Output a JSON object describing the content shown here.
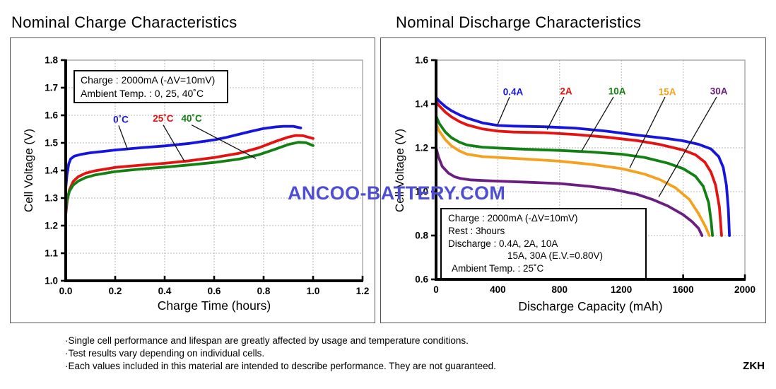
{
  "watermark": {
    "text": "ANCOO-BATTERY.COM",
    "color": "#4e4ed2"
  },
  "footer": {
    "notes": [
      "·Single cell performance and lifespan are greatly affected by usage and temperature conditions.",
      "·Test results vary depending on individual cells.",
      "·Each values included in this material are intended to describe performance. They are not guaranteed."
    ],
    "code": "ZKH"
  },
  "chart_data": [
    {
      "type": "line",
      "title": "Nominal Charge Characteristics",
      "xlabel": "Charge Time (hours)",
      "ylabel": "Cell Voltage (V)",
      "xlim": [
        0.0,
        1.2
      ],
      "ylim": [
        1.0,
        1.8
      ],
      "grid": true,
      "xticks": [
        0.0,
        0.2,
        0.4,
        0.6,
        0.8,
        1.0,
        1.2
      ],
      "xtick_labels": [
        "0.0",
        "0.2",
        "0.4",
        "0.6",
        "0.8",
        "1.0",
        "1.2"
      ],
      "yticks": [
        1.0,
        1.1,
        1.2,
        1.3,
        1.4,
        1.5,
        1.6,
        1.7,
        1.8
      ],
      "ytick_labels": [
        "1.0",
        "1.1",
        "1.2",
        "1.3",
        "1.4",
        "1.5",
        "1.6",
        "1.7",
        "1.8"
      ],
      "annotation_lines": [
        "Charge : 2000mA (-ΔV=10mV)",
        "Ambient Temp. : 0, 25, 40˚C"
      ],
      "series": [
        {
          "name": "0˚C",
          "color": "#1515dd",
          "label_xy": [
            0.223,
            1.585
          ],
          "leader": [
            [
              0.214,
              1.563
            ],
            [
              0.251,
              1.474
            ]
          ],
          "points": [
            [
              0,
              1.335
            ],
            [
              0.005,
              1.385
            ],
            [
              0.012,
              1.423
            ],
            [
              0.02,
              1.442
            ],
            [
              0.035,
              1.452
            ],
            [
              0.06,
              1.458
            ],
            [
              0.1,
              1.464
            ],
            [
              0.15,
              1.469
            ],
            [
              0.2,
              1.474
            ],
            [
              0.3,
              1.482
            ],
            [
              0.4,
              1.489
            ],
            [
              0.5,
              1.498
            ],
            [
              0.6,
              1.511
            ],
            [
              0.65,
              1.52
            ],
            [
              0.7,
              1.531
            ],
            [
              0.75,
              1.542
            ],
            [
              0.8,
              1.552
            ],
            [
              0.85,
              1.558
            ],
            [
              0.88,
              1.56
            ],
            [
              0.92,
              1.56
            ],
            [
              0.95,
              1.554
            ]
          ]
        },
        {
          "name": "25˚C",
          "color": "#e51212",
          "label_xy": [
            0.394,
            1.589
          ],
          "leader": [
            [
              0.394,
              1.565
            ],
            [
              0.48,
              1.433
            ]
          ],
          "points": [
            [
              0,
              1.238
            ],
            [
              0.006,
              1.29
            ],
            [
              0.015,
              1.33
            ],
            [
              0.03,
              1.36
            ],
            [
              0.05,
              1.377
            ],
            [
              0.08,
              1.39
            ],
            [
              0.12,
              1.399
            ],
            [
              0.2,
              1.411
            ],
            [
              0.3,
              1.419
            ],
            [
              0.4,
              1.426
            ],
            [
              0.5,
              1.435
            ],
            [
              0.6,
              1.447
            ],
            [
              0.7,
              1.462
            ],
            [
              0.78,
              1.482
            ],
            [
              0.85,
              1.506
            ],
            [
              0.9,
              1.521
            ],
            [
              0.93,
              1.527
            ],
            [
              0.96,
              1.526
            ],
            [
              1.0,
              1.516
            ]
          ]
        },
        {
          "name": "40˚C",
          "color": "#128012",
          "label_xy": [
            0.509,
            1.589
          ],
          "leader": [
            [
              0.509,
              1.565
            ],
            [
              0.769,
              1.443
            ]
          ],
          "points": [
            [
              0,
              1.252
            ],
            [
              0.006,
              1.295
            ],
            [
              0.015,
              1.325
            ],
            [
              0.03,
              1.347
            ],
            [
              0.05,
              1.361
            ],
            [
              0.08,
              1.374
            ],
            [
              0.12,
              1.384
            ],
            [
              0.2,
              1.396
            ],
            [
              0.3,
              1.405
            ],
            [
              0.4,
              1.412
            ],
            [
              0.5,
              1.42
            ],
            [
              0.6,
              1.429
            ],
            [
              0.7,
              1.441
            ],
            [
              0.78,
              1.457
            ],
            [
              0.85,
              1.478
            ],
            [
              0.9,
              1.494
            ],
            [
              0.94,
              1.502
            ],
            [
              0.97,
              1.501
            ],
            [
              1.0,
              1.49
            ]
          ]
        }
      ]
    },
    {
      "type": "line",
      "title": "Nominal Discharge Characteristics",
      "xlabel": "Discharge Capacity (mAh)",
      "ylabel": "Cell Voltage (V)",
      "xlim": [
        0,
        2000
      ],
      "ylim": [
        0.6,
        1.6
      ],
      "grid": true,
      "xticks": [
        0,
        400,
        800,
        1200,
        1600,
        2000
      ],
      "xtick_labels": [
        "0",
        "400",
        "800",
        "1200",
        "1600",
        "2000"
      ],
      "yticks": [
        0.6,
        0.8,
        1.0,
        1.2,
        1.4,
        1.6
      ],
      "ytick_labels": [
        "0.6",
        "0.8",
        "1.0",
        "1.2",
        "1.4",
        "1.6"
      ],
      "annotation_lines": [
        "Charge : 2000mA (-ΔV=10mV)",
        "Rest : 3hours",
        "Discharge : 0.4A, 2A, 10A",
        "15A, 30A (E.V.=0.80V)",
        "Ambient Temp. : 25˚C"
      ],
      "series": [
        {
          "name": "0.4A",
          "color": "#1515dd",
          "label_xy": [
            499,
            1.455
          ],
          "leader": [
            [
              476,
              1.432
            ],
            [
              398,
              1.305
            ]
          ],
          "points": [
            [
              0,
              1.43
            ],
            [
              20,
              1.413
            ],
            [
              60,
              1.388
            ],
            [
              100,
              1.369
            ],
            [
              150,
              1.351
            ],
            [
              200,
              1.336
            ],
            [
              300,
              1.314
            ],
            [
              400,
              1.302
            ],
            [
              500,
              1.299
            ],
            [
              700,
              1.296
            ],
            [
              900,
              1.29
            ],
            [
              1100,
              1.276
            ],
            [
              1300,
              1.258
            ],
            [
              1500,
              1.242
            ],
            [
              1600,
              1.232
            ],
            [
              1700,
              1.216
            ],
            [
              1780,
              1.195
            ],
            [
              1830,
              1.16
            ],
            [
              1860,
              1.11
            ],
            [
              1880,
              1.03
            ],
            [
              1893,
              0.92
            ],
            [
              1900,
              0.8
            ]
          ]
        },
        {
          "name": "2A",
          "color": "#e51212",
          "label_xy": [
            842,
            1.458
          ],
          "leader": [
            [
              828,
              1.432
            ],
            [
              719,
              1.283
            ]
          ],
          "points": [
            [
              0,
              1.41
            ],
            [
              20,
              1.392
            ],
            [
              60,
              1.363
            ],
            [
              100,
              1.341
            ],
            [
              150,
              1.32
            ],
            [
              200,
              1.305
            ],
            [
              300,
              1.286
            ],
            [
              400,
              1.276
            ],
            [
              500,
              1.272
            ],
            [
              700,
              1.269
            ],
            [
              900,
              1.261
            ],
            [
              1100,
              1.249
            ],
            [
              1300,
              1.233
            ],
            [
              1450,
              1.215
            ],
            [
              1600,
              1.19
            ],
            [
              1680,
              1.168
            ],
            [
              1740,
              1.135
            ],
            [
              1780,
              1.09
            ],
            [
              1810,
              1.03
            ],
            [
              1835,
              0.93
            ],
            [
              1849,
              0.8
            ]
          ]
        },
        {
          "name": "10A",
          "color": "#128012",
          "label_xy": [
            1172,
            1.458
          ],
          "leader": [
            [
              1149,
              1.432
            ],
            [
              943,
              1.186
            ]
          ],
          "points": [
            [
              0,
              1.345
            ],
            [
              20,
              1.312
            ],
            [
              60,
              1.272
            ],
            [
              100,
              1.246
            ],
            [
              150,
              1.226
            ],
            [
              200,
              1.213
            ],
            [
              300,
              1.203
            ],
            [
              400,
              1.199
            ],
            [
              600,
              1.193
            ],
            [
              800,
              1.188
            ],
            [
              1000,
              1.181
            ],
            [
              1200,
              1.171
            ],
            [
              1350,
              1.156
            ],
            [
              1500,
              1.13
            ],
            [
              1600,
              1.105
            ],
            [
              1680,
              1.07
            ],
            [
              1730,
              1.025
            ],
            [
              1765,
              0.95
            ],
            [
              1782,
              0.86
            ],
            [
              1790,
              0.8
            ]
          ]
        },
        {
          "name": "15A",
          "color": "#f5a11e",
          "label_xy": [
            1497,
            1.455
          ],
          "leader": [
            [
              1483,
              1.432
            ],
            [
              1254,
              1.108
            ]
          ],
          "points": [
            [
              0,
              1.31
            ],
            [
              20,
              1.277
            ],
            [
              60,
              1.237
            ],
            [
              100,
              1.209
            ],
            [
              150,
              1.186
            ],
            [
              200,
              1.171
            ],
            [
              300,
              1.16
            ],
            [
              400,
              1.156
            ],
            [
              600,
              1.148
            ],
            [
              800,
              1.139
            ],
            [
              1000,
              1.125
            ],
            [
              1200,
              1.105
            ],
            [
              1350,
              1.08
            ],
            [
              1450,
              1.055
            ],
            [
              1550,
              1.018
            ],
            [
              1640,
              0.965
            ],
            [
              1700,
              0.9
            ],
            [
              1745,
              0.84
            ],
            [
              1770,
              0.8
            ]
          ]
        },
        {
          "name": "30A",
          "color": "#6b1e7f",
          "label_xy": [
            1831,
            1.458
          ],
          "leader": [
            [
              1817,
              1.432
            ],
            [
              1442,
              0.976
            ]
          ],
          "points": [
            [
              0,
              1.2
            ],
            [
              15,
              1.16
            ],
            [
              40,
              1.115
            ],
            [
              80,
              1.085
            ],
            [
              120,
              1.068
            ],
            [
              160,
              1.06
            ],
            [
              220,
              1.054
            ],
            [
              300,
              1.051
            ],
            [
              400,
              1.048
            ],
            [
              600,
              1.043
            ],
            [
              800,
              1.037
            ],
            [
              1000,
              1.024
            ],
            [
              1150,
              1.01
            ],
            [
              1300,
              0.988
            ],
            [
              1400,
              0.965
            ],
            [
              1500,
              0.935
            ],
            [
              1600,
              0.895
            ],
            [
              1660,
              0.862
            ],
            [
              1700,
              0.833
            ],
            [
              1722,
              0.8
            ]
          ]
        }
      ]
    }
  ]
}
